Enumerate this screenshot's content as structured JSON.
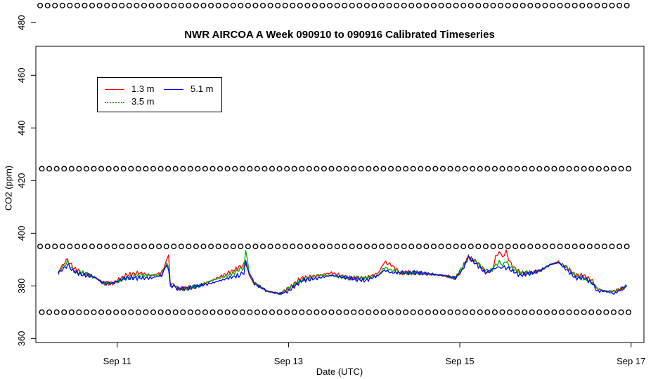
{
  "chart_data": {
    "type": "line",
    "title": "NWR AIRCOA A  Week 090910 to 090916  Calibrated Timeseries",
    "xlabel": "Date (UTC)",
    "ylabel": "CO2 (ppm)",
    "xlim": [
      10.05,
      17.15
    ],
    "ylim": [
      358.5,
      471
    ],
    "xticks": [
      {
        "value": 11,
        "label": "Sep 11"
      },
      {
        "value": 13,
        "label": "Sep 13"
      },
      {
        "value": 15,
        "label": "Sep 15"
      },
      {
        "value": 17,
        "label": "Sep 17"
      }
    ],
    "yticks": [
      360,
      380,
      400,
      420,
      440,
      460,
      480
    ],
    "legend": {
      "position": "top-left",
      "entries": [
        {
          "label": "1.3 m",
          "color": "#ff0000",
          "style": "solid"
        },
        {
          "label": "3.5 m",
          "color": "#00aa00",
          "style": "dotted"
        },
        {
          "label": "5.1 m",
          "color": "#0000ff",
          "style": "solid"
        }
      ]
    },
    "series": [
      {
        "name": "1.3 m",
        "color": "#ff0000",
        "x": [
          10.31,
          10.36,
          10.42,
          10.48,
          10.53,
          10.6,
          10.68,
          10.75,
          10.84,
          10.95,
          11.1,
          11.25,
          11.4,
          11.52,
          11.58,
          11.6,
          11.62,
          11.66,
          11.7,
          11.8,
          11.95,
          12.1,
          12.3,
          12.42,
          12.48,
          12.5,
          12.54,
          12.6,
          12.75,
          12.9,
          13.0,
          13.15,
          13.35,
          13.5,
          13.7,
          13.9,
          14.05,
          14.12,
          14.2,
          14.3,
          14.5,
          14.8,
          14.95,
          15.03,
          15.1,
          15.2,
          15.3,
          15.38,
          15.42,
          15.46,
          15.5,
          15.54,
          15.6,
          15.7,
          15.85,
          15.95,
          16.05,
          16.15,
          16.25,
          16.35,
          16.45,
          16.55,
          16.6,
          16.7,
          16.8,
          16.9,
          16.95
        ],
        "values": [
          385,
          388,
          390,
          387,
          386,
          385,
          384,
          383,
          381,
          381,
          384,
          385,
          384,
          385,
          390,
          392,
          380,
          381,
          379,
          379,
          380,
          382,
          385,
          387,
          388,
          389,
          384,
          381,
          378,
          377,
          379,
          383,
          384,
          385,
          383,
          383,
          385,
          389,
          388,
          385,
          385,
          384,
          383,
          387,
          391,
          389,
          385,
          386,
          391,
          393,
          391,
          393,
          388,
          385,
          385,
          386,
          388,
          389,
          387,
          384,
          384,
          382,
          379,
          378,
          378,
          379,
          380
        ]
      },
      {
        "name": "3.5 m",
        "color": "#00aa00",
        "x": [
          10.31,
          10.36,
          10.42,
          10.48,
          10.53,
          10.6,
          10.68,
          10.75,
          10.84,
          10.95,
          11.1,
          11.25,
          11.4,
          11.52,
          11.58,
          11.6,
          11.62,
          11.66,
          11.7,
          11.8,
          11.95,
          12.1,
          12.3,
          12.42,
          12.48,
          12.5,
          12.54,
          12.6,
          12.75,
          12.9,
          13.0,
          13.15,
          13.35,
          13.5,
          13.7,
          13.9,
          14.05,
          14.12,
          14.2,
          14.3,
          14.5,
          14.8,
          14.95,
          15.03,
          15.1,
          15.2,
          15.3,
          15.38,
          15.42,
          15.46,
          15.5,
          15.54,
          15.6,
          15.7,
          15.85,
          15.95,
          16.05,
          16.15,
          16.25,
          16.35,
          16.45,
          16.55,
          16.6,
          16.7,
          16.8,
          16.9,
          16.95
        ],
        "values": [
          385,
          387,
          389,
          386,
          385,
          385,
          384,
          383,
          381,
          381,
          383,
          384,
          384,
          384,
          389,
          388,
          380,
          380,
          379,
          379,
          380,
          382,
          384,
          386,
          387,
          394,
          385,
          381,
          378,
          377,
          379,
          382,
          384,
          384,
          383,
          383,
          384,
          387,
          386,
          385,
          385,
          384,
          383,
          387,
          391,
          389,
          386,
          386,
          388,
          389,
          388,
          389,
          387,
          385,
          385,
          386,
          388,
          389,
          387,
          384,
          383,
          381,
          379,
          378,
          378,
          379,
          380
        ]
      },
      {
        "name": "5.1 m",
        "color": "#0000ff",
        "x": [
          10.31,
          10.36,
          10.42,
          10.48,
          10.53,
          10.6,
          10.68,
          10.75,
          10.84,
          10.95,
          11.1,
          11.25,
          11.4,
          11.52,
          11.58,
          11.6,
          11.62,
          11.66,
          11.7,
          11.8,
          11.95,
          12.1,
          12.3,
          12.42,
          12.48,
          12.5,
          12.54,
          12.6,
          12.75,
          12.9,
          13.0,
          13.15,
          13.35,
          13.5,
          13.7,
          13.9,
          14.05,
          14.12,
          14.2,
          14.3,
          14.5,
          14.8,
          14.95,
          15.03,
          15.1,
          15.2,
          15.3,
          15.38,
          15.42,
          15.46,
          15.5,
          15.54,
          15.6,
          15.7,
          15.85,
          15.95,
          16.05,
          16.15,
          16.25,
          16.35,
          16.45,
          16.55,
          16.6,
          16.7,
          16.8,
          16.9,
          16.95
        ],
        "values": [
          385,
          386,
          388,
          386,
          385,
          384,
          384,
          383,
          381,
          381,
          383,
          383,
          383,
          384,
          388,
          386,
          380,
          380,
          379,
          379,
          380,
          381,
          383,
          384,
          385,
          389,
          385,
          381,
          378,
          377,
          378,
          382,
          383,
          384,
          383,
          382,
          384,
          386,
          385,
          385,
          385,
          384,
          383,
          386,
          391,
          388,
          385,
          386,
          387,
          387,
          387,
          387,
          386,
          384,
          385,
          386,
          388,
          389,
          386,
          383,
          383,
          381,
          378,
          378,
          377,
          379,
          380
        ]
      }
    ],
    "calibration_points": {
      "marker": "open-circle",
      "levels": [
        486.5,
        424.5,
        395,
        370
      ],
      "x_start": 10.1,
      "x_end": 16.95,
      "count": 80
    }
  }
}
